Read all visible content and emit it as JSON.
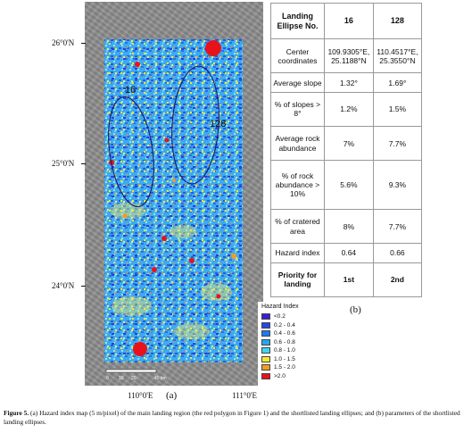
{
  "map": {
    "sublabel": "(a)",
    "lat_labels": [
      "26°0'N",
      "25°0'N",
      "24°0'N"
    ],
    "lon_labels": [
      "110°0'E",
      "111°0'E"
    ],
    "scale_bar": {
      "labels": [
        "0",
        "10",
        "20",
        "40 km"
      ]
    },
    "ellipses": [
      {
        "label": "16"
      },
      {
        "label": "128"
      }
    ]
  },
  "legend": {
    "title": "Hazard Index",
    "items": [
      {
        "label": "<0.2",
        "color": "#3b1fd6"
      },
      {
        "label": "0.2 - 0.4",
        "color": "#2a45e8"
      },
      {
        "label": "0.4 - 0.6",
        "color": "#1f78f0"
      },
      {
        "label": "0.6 - 0.8",
        "color": "#24a8f5"
      },
      {
        "label": "0.8 - 1.0",
        "color": "#3fd6f2"
      },
      {
        "label": "1.0 - 1.5",
        "color": "#f2e92a"
      },
      {
        "label": "1.5 - 2.0",
        "color": "#f59a22"
      },
      {
        "label": ">2.0",
        "color": "#e8121a"
      }
    ]
  },
  "table": {
    "sublabel": "(b)",
    "header": [
      "Landing Ellipse No.",
      "16",
      "128"
    ],
    "rows": [
      [
        "Center coordinates",
        "109.9305°E, 25.1188°N",
        "110.4517°E, 25.3550°N"
      ],
      [
        "Average slope",
        "1.32°",
        "1.69°"
      ],
      [
        "% of slopes > 8°",
        "1.2%",
        "1.5%"
      ],
      [
        "Average rock abundance",
        "7%",
        "7.7%"
      ],
      [
        "% of rock abundance > 10%",
        "5.6%",
        "9.3%"
      ],
      [
        "% of cratered area",
        "8%",
        "7.7%"
      ],
      [
        "Hazard index",
        "0.64",
        "0.66"
      ],
      [
        "Priority for landing",
        "1st",
        "2nd"
      ]
    ]
  },
  "caption": {
    "label": "Figure 5.",
    "text": " (a) Hazard index map (5 m/pixel) of the main landing region (the red polygon in Figure 1) and the shortlisted landing ellipses; and (b) parameters of the shortlisted landing ellipses."
  }
}
